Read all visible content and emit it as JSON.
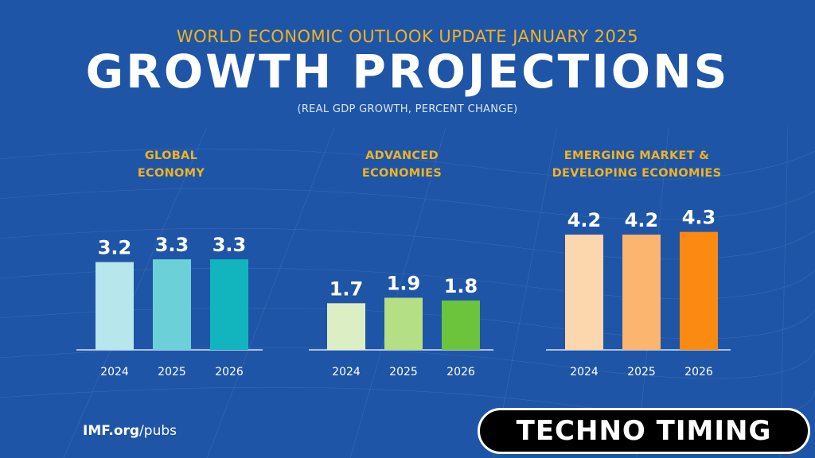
{
  "header": {
    "supertitle": "WORLD ECONOMIC OUTLOOK UPDATE JANUARY 2025",
    "title": "GROWTH PROJECTIONS",
    "subtitle": "(REAL GDP GROWTH, PERCENT CHANGE)"
  },
  "chart_data": [
    {
      "type": "bar",
      "title_lines": [
        "GLOBAL",
        "ECONOMY"
      ],
      "categories": [
        "2024",
        "2025",
        "2026"
      ],
      "values": [
        3.2,
        3.3,
        3.3
      ],
      "colors": [
        "#b7e6ec",
        "#6cd0d8",
        "#12b5bd"
      ]
    },
    {
      "type": "bar",
      "title_lines": [
        "ADVANCED",
        "ECONOMIES"
      ],
      "categories": [
        "2024",
        "2025",
        "2026"
      ],
      "values": [
        1.7,
        1.9,
        1.8
      ],
      "colors": [
        "#dcefc4",
        "#b4df84",
        "#6cc43c"
      ]
    },
    {
      "type": "bar",
      "title_lines": [
        "EMERGING MARKET &",
        "DEVELOPING ECONOMIES"
      ],
      "categories": [
        "2024",
        "2025",
        "2026"
      ],
      "values": [
        4.2,
        4.2,
        4.3
      ],
      "colors": [
        "#fcd6ad",
        "#fcb56f",
        "#fb8a12"
      ]
    }
  ],
  "footer": {
    "link_bold": "IMF.org",
    "link_rest": "/pubs"
  },
  "watermark": {
    "text": "TECHNO TIMING"
  }
}
